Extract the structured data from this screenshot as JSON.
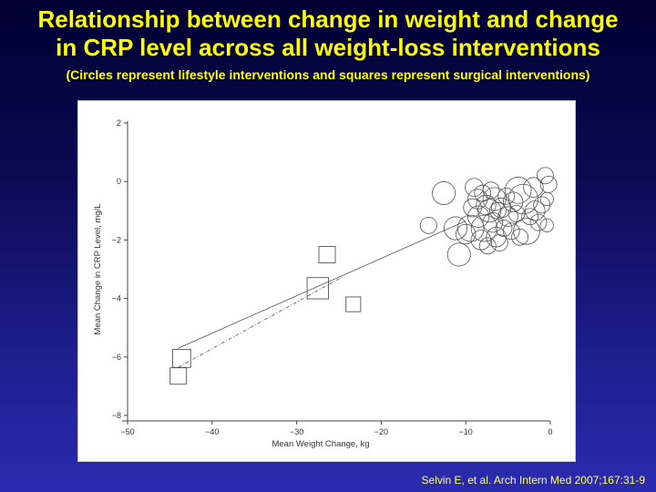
{
  "header": {
    "title_line1": "Relationship between change in weight and change",
    "title_line2": "in CRP level across all weight-loss interventions",
    "subtitle": "(Circles represent lifestyle interventions and squares represent surgical interventions)"
  },
  "citation": "Selvin E, et al. Arch Intern Med 2007;167:31-9",
  "colors": {
    "title": "#ffff00",
    "citation": "#ffff66",
    "marker": "#555555"
  },
  "chart_data": {
    "type": "scatter",
    "xlabel": "Mean Weight Change, kg",
    "ylabel": "Mean Change in CRP Level, mg/L",
    "xlim": [
      -50,
      0
    ],
    "ylim": [
      -8,
      2
    ],
    "xticks": [
      -50,
      -40,
      -30,
      -20,
      -10,
      0
    ],
    "yticks": [
      2,
      0,
      -2,
      -4,
      -6,
      -8
    ],
    "xtick_labels": [
      "−50",
      "−40",
      "−30",
      "−20",
      "−10",
      "0"
    ],
    "ytick_labels": [
      "2",
      "0",
      "−2",
      "−4",
      "−6",
      "−8"
    ],
    "grid": false,
    "series": [
      {
        "marker": "circle",
        "points": [
          {
            "x": -12.6,
            "y": -0.4,
            "size": 1.4
          },
          {
            "x": -14.4,
            "y": -1.5,
            "size": 1.0
          },
          {
            "x": -11.2,
            "y": -1.6,
            "size": 1.4
          },
          {
            "x": -10.8,
            "y": -2.5,
            "size": 1.4
          },
          {
            "x": -10.0,
            "y": -1.8,
            "size": 1.2
          },
          {
            "x": -9.4,
            "y": -1.6,
            "size": 1.6
          },
          {
            "x": -9.2,
            "y": -0.9,
            "size": 1.1
          },
          {
            "x": -9.0,
            "y": -0.2,
            "size": 1.1
          },
          {
            "x": -8.6,
            "y": -0.6,
            "size": 1.2
          },
          {
            "x": -8.5,
            "y": -1.2,
            "size": 1.3
          },
          {
            "x": -8.2,
            "y": -2.0,
            "size": 1.2
          },
          {
            "x": -8.0,
            "y": -0.4,
            "size": 1.0
          },
          {
            "x": -7.8,
            "y": -1.6,
            "size": 1.6
          },
          {
            "x": -7.6,
            "y": -0.8,
            "size": 1.2
          },
          {
            "x": -7.4,
            "y": -2.2,
            "size": 1.0
          },
          {
            "x": -7.2,
            "y": -1.0,
            "size": 1.4
          },
          {
            "x": -7.0,
            "y": -0.3,
            "size": 1.0
          },
          {
            "x": -6.8,
            "y": -1.4,
            "size": 1.2
          },
          {
            "x": -6.6,
            "y": -0.6,
            "size": 1.4
          },
          {
            "x": -6.4,
            "y": -1.9,
            "size": 1.2
          },
          {
            "x": -6.2,
            "y": -1.0,
            "size": 1.0
          },
          {
            "x": -6.0,
            "y": -2.1,
            "size": 1.0
          },
          {
            "x": -5.8,
            "y": -0.9,
            "size": 1.2
          },
          {
            "x": -5.5,
            "y": -1.6,
            "size": 1.0
          },
          {
            "x": -5.2,
            "y": -0.5,
            "size": 1.0
          },
          {
            "x": -5.0,
            "y": -1.2,
            "size": 1.2
          },
          {
            "x": -4.6,
            "y": -1.7,
            "size": 1.0
          },
          {
            "x": -4.4,
            "y": -0.7,
            "size": 1.2
          },
          {
            "x": -4.0,
            "y": -1.1,
            "size": 1.0
          },
          {
            "x": -3.8,
            "y": -0.3,
            "size": 1.6
          },
          {
            "x": -3.6,
            "y": -1.9,
            "size": 1.0
          },
          {
            "x": -3.2,
            "y": -0.6,
            "size": 1.8
          },
          {
            "x": -2.8,
            "y": -1.7,
            "size": 1.6
          },
          {
            "x": -2.4,
            "y": -1.2,
            "size": 1.0
          },
          {
            "x": -2.0,
            "y": -0.2,
            "size": 1.2
          },
          {
            "x": -1.8,
            "y": -1.0,
            "size": 1.2
          },
          {
            "x": -1.4,
            "y": -1.4,
            "size": 1.0
          },
          {
            "x": -1.0,
            "y": -0.8,
            "size": 1.0
          },
          {
            "x": -0.6,
            "y": 0.2,
            "size": 1.0
          },
          {
            "x": -0.4,
            "y": -1.5,
            "size": 0.8
          },
          {
            "x": -0.2,
            "y": -0.1,
            "size": 1.0
          },
          {
            "x": -0.4,
            "y": -0.6,
            "size": 0.8
          }
        ]
      },
      {
        "marker": "square",
        "points": [
          {
            "x": -26.4,
            "y": -2.5,
            "size": 1.0
          },
          {
            "x": -23.3,
            "y": -4.2,
            "size": 0.9
          },
          {
            "x": -27.5,
            "y": -3.65,
            "size": 1.3
          },
          {
            "x": -43.6,
            "y": -6.05,
            "size": 1.1
          },
          {
            "x": -44.0,
            "y": -6.65,
            "size": 1.0
          }
        ]
      }
    ],
    "fit_lines": [
      {
        "style": "solid",
        "x": [
          -44.0,
          -10.0
        ],
        "y": [
          -5.7,
          -1.35
        ]
      },
      {
        "style": "dashed",
        "x": [
          -44.0,
          -24.5
        ],
        "y": [
          -6.35,
          -3.25
        ]
      }
    ]
  }
}
